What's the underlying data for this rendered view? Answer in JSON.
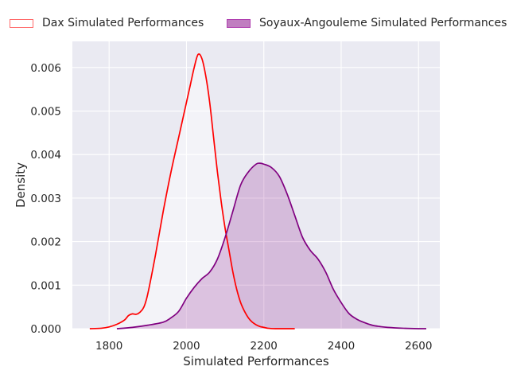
{
  "chart_data": {
    "type": "area",
    "title": "",
    "xlabel": "Simulated Performances",
    "ylabel": "Density",
    "xlim": [
      1705,
      2655
    ],
    "ylim": [
      0,
      0.0066
    ],
    "x_ticks": [
      1800,
      2000,
      2200,
      2400,
      2600
    ],
    "x_tick_labels": [
      "1800",
      "2000",
      "2200",
      "2400",
      "2600"
    ],
    "y_ticks": [
      0,
      0.001,
      0.002,
      0.003,
      0.004,
      0.005,
      0.006
    ],
    "y_tick_labels": [
      "0.000",
      "0.001",
      "0.002",
      "0.003",
      "0.004",
      "0.005",
      "0.006"
    ],
    "grid": true,
    "background": "#eaeaf2",
    "legend_position": "top",
    "series": [
      {
        "name": "Dax Simulated Performances",
        "line_color": "#ff0000",
        "fill_color": "#ffffff",
        "fill_opacity": 0.45,
        "legend_edge": "#ff6b6b",
        "x": [
          1750,
          1780,
          1800,
          1820,
          1840,
          1850,
          1860,
          1870,
          1880,
          1890,
          1900,
          1920,
          1940,
          1960,
          1980,
          2000,
          2010,
          2020,
          2030,
          2040,
          2050,
          2060,
          2070,
          2080,
          2090,
          2100,
          2110,
          2120,
          2130,
          2140,
          2150,
          2160,
          2170,
          2180,
          2190,
          2200,
          2210,
          2230,
          2250,
          2280
        ],
        "y": [
          0,
          1e-05,
          4e-05,
          0.0001,
          0.0002,
          0.0003,
          0.00034,
          0.00033,
          0.00038,
          0.0005,
          0.0008,
          0.0017,
          0.0027,
          0.0036,
          0.0044,
          0.0052,
          0.0056,
          0.006,
          0.0063,
          0.0062,
          0.0058,
          0.0052,
          0.0044,
          0.0036,
          0.0029,
          0.0023,
          0.0018,
          0.0013,
          0.0009,
          0.0006,
          0.0004,
          0.00025,
          0.00015,
          9e-05,
          5e-05,
          3e-05,
          1e-05,
          0,
          0,
          0
        ]
      },
      {
        "name": "Soyaux-Angouleme Simulated Performances",
        "line_color": "#800080",
        "fill_color": "#800080",
        "fill_opacity": 0.2,
        "legend_edge": "#b040b0",
        "legend_fill": "#c07ec0",
        "x": [
          1820,
          1860,
          1900,
          1940,
          1960,
          1980,
          2000,
          2020,
          2040,
          2060,
          2080,
          2100,
          2120,
          2140,
          2160,
          2180,
          2190,
          2200,
          2220,
          2240,
          2260,
          2280,
          2300,
          2320,
          2340,
          2360,
          2380,
          2400,
          2420,
          2440,
          2460,
          2480,
          2500,
          2520,
          2560,
          2600,
          2620
        ],
        "y": [
          0,
          3e-05,
          8e-05,
          0.00015,
          0.00025,
          0.0004,
          0.0007,
          0.00095,
          0.00115,
          0.0013,
          0.0016,
          0.0021,
          0.0027,
          0.0033,
          0.0036,
          0.00378,
          0.0038,
          0.00378,
          0.0037,
          0.0035,
          0.0031,
          0.0026,
          0.0021,
          0.0018,
          0.0016,
          0.0013,
          0.0009,
          0.0006,
          0.00035,
          0.00022,
          0.00014,
          8e-05,
          5e-05,
          3e-05,
          1e-05,
          0,
          0
        ]
      }
    ]
  }
}
